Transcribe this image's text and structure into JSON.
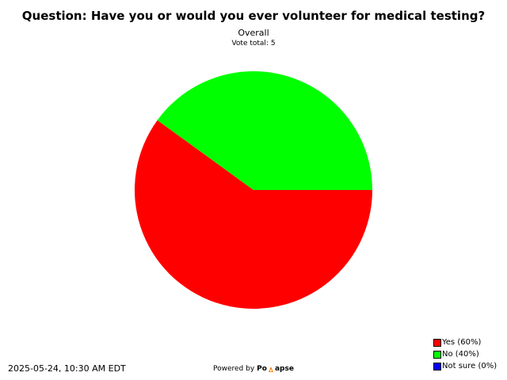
{
  "header": {
    "title": "Question: Have you or would you ever volunteer for medical testing?",
    "subtitle": "Overall",
    "vote_total": "Vote total: 5"
  },
  "chart_data": {
    "type": "pie",
    "title": "Question: Have you or would you ever volunteer for medical testing?",
    "subtitle": "Overall",
    "categories": [
      "Yes",
      "No",
      "Not sure"
    ],
    "values": [
      60,
      40,
      0
    ],
    "colors": [
      "#ff0000",
      "#00ff00",
      "#0000ff"
    ],
    "legend_position": "bottom-right"
  },
  "legend": {
    "items": [
      {
        "label": "Yes (60%)",
        "color": "#ff0000"
      },
      {
        "label": "No (40%)",
        "color": "#00ff00"
      },
      {
        "label": "Not sure (0%)",
        "color": "#0000ff"
      }
    ]
  },
  "footer": {
    "timestamp": "2025-05-24, 10:30 AM EDT",
    "powered_by": "Powered by",
    "brand_left": "Po",
    "brand_right": "apse",
    "brand_mark_icon": "polapse-logo-icon"
  }
}
